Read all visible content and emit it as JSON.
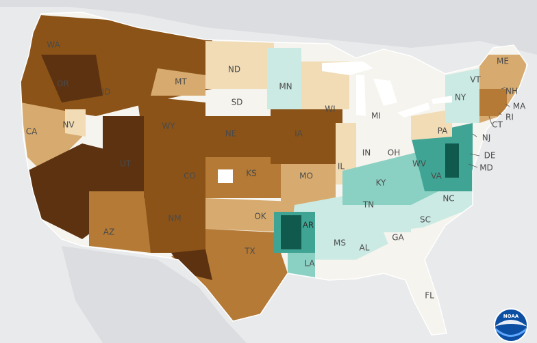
{
  "map": {
    "background_color": "#e9eaec",
    "land_color": "#dcdde0",
    "water_color": "#ffffff",
    "palette": {
      "very_dry": "#5c3210",
      "dry": "#8b5318",
      "moderately_dry": "#b47a36",
      "slightly_dry": "#d7ab6f",
      "near_normal_dry": "#f1dcb6",
      "near_normal": "#f6f4ee",
      "slightly_wet": "#cbeae3",
      "wet": "#8bd1c3",
      "moderately_wet": "#3fa494",
      "very_wet": "#0f5a4c"
    },
    "state_labels": [
      "WA",
      "OR",
      "CA",
      "NV",
      "ID",
      "MT",
      "WY",
      "UT",
      "AZ",
      "CO",
      "NM",
      "ND",
      "SD",
      "NE",
      "KS",
      "OK",
      "TX",
      "MN",
      "IA",
      "MO",
      "AR",
      "LA",
      "WI",
      "IL",
      "MI",
      "IN",
      "OH",
      "KY",
      "TN",
      "MS",
      "AL",
      "GA",
      "FL",
      "SC",
      "NC",
      "VA",
      "WV",
      "PA",
      "NY",
      "ME",
      "VT",
      "NH",
      "MA",
      "RI",
      "CT",
      "NJ",
      "DE",
      "MD"
    ],
    "logo_text": "NOAA"
  }
}
